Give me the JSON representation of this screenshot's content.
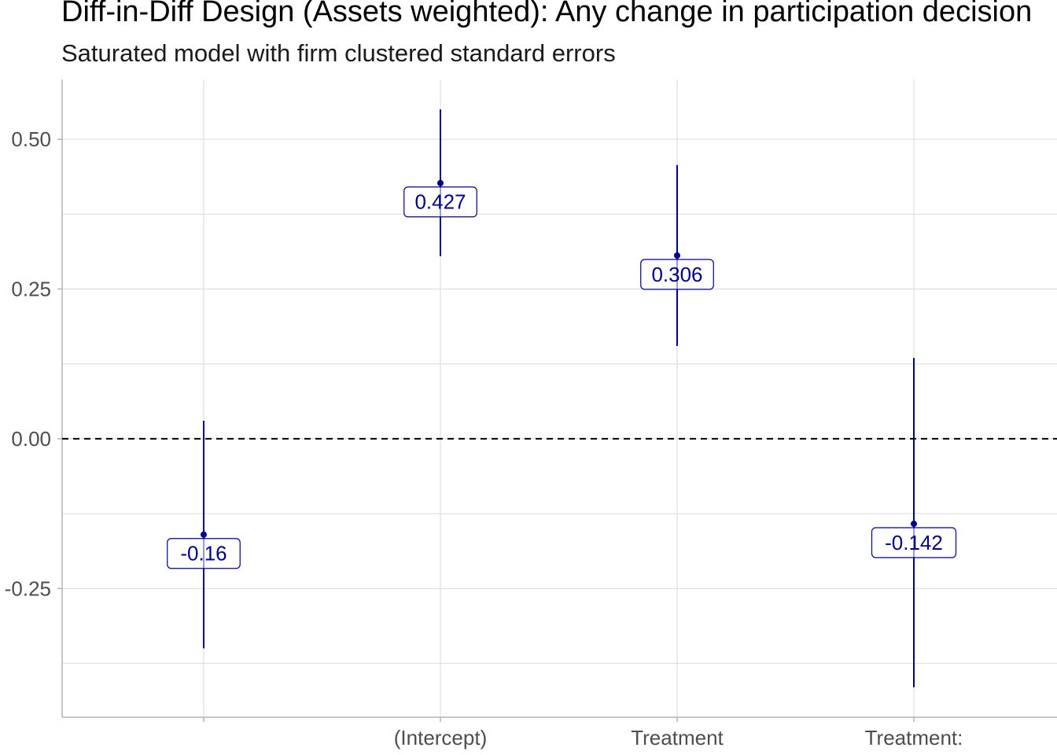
{
  "chart_data": {
    "type": "errorbar",
    "title": "Diff-in-Diff Design (Assets weighted): Any change in participation decision",
    "subtitle": "Saturated model with firm clustered standard errors",
    "xlabel": "",
    "ylabel": "",
    "ylim": [
      -0.465,
      0.6
    ],
    "yticks": [
      -0.25,
      0.0,
      0.25,
      0.5
    ],
    "ytick_labels": [
      "-0.25",
      "0.00",
      "0.25",
      "0.50"
    ],
    "reference_line": 0.0,
    "grid": true,
    "color": "#00008b",
    "points": [
      {
        "category": "",
        "estimate": -0.16,
        "label": "-0.16",
        "low": -0.35,
        "high": 0.03
      },
      {
        "category": "(Intercept)",
        "estimate": 0.427,
        "label": "0.427",
        "low": 0.305,
        "high": 0.55
      },
      {
        "category": "Treatment",
        "estimate": 0.306,
        "label": "0.306",
        "low": 0.155,
        "high": 0.457
      },
      {
        "category": "Treatment:",
        "estimate": -0.142,
        "label": "-0.142",
        "low": -0.415,
        "high": 0.135
      }
    ]
  }
}
